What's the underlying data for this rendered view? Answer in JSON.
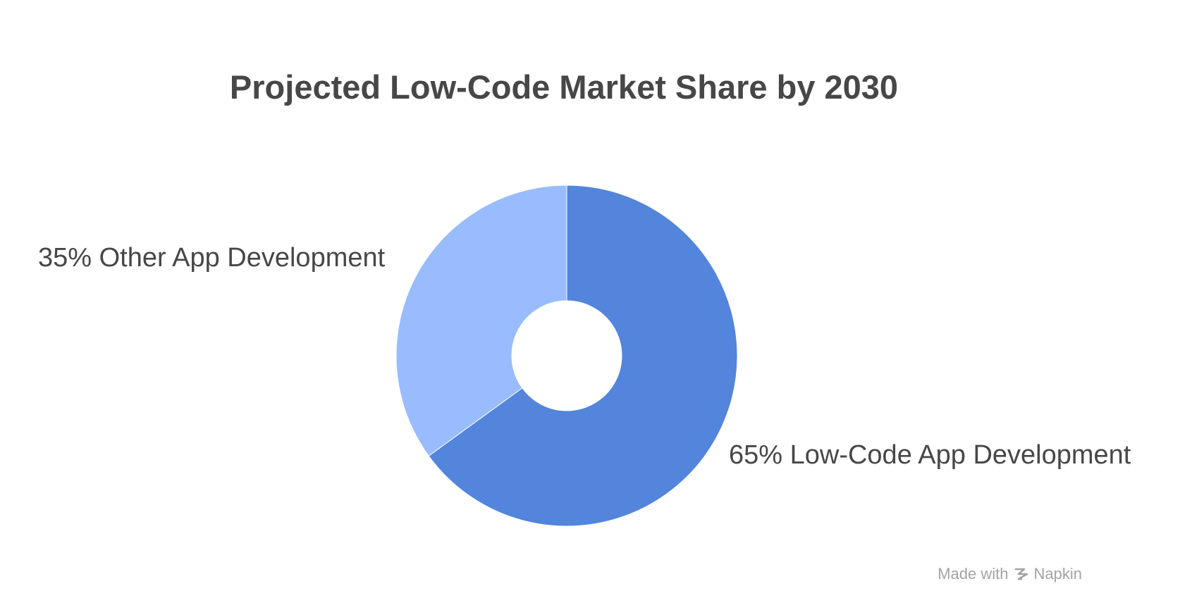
{
  "chart_data": {
    "type": "pie",
    "donut": true,
    "title": "Projected Low-Code Market Share by 2030",
    "slices": [
      {
        "label": "65% Low-Code App Development",
        "value": 65,
        "color": "#5285db"
      },
      {
        "label": "35% Other App Development",
        "value": 35,
        "color": "#98bcfd"
      }
    ]
  },
  "watermark": {
    "prefix": "Made with",
    "brand": "Napkin",
    "icon": "napkin-logo-icon"
  }
}
